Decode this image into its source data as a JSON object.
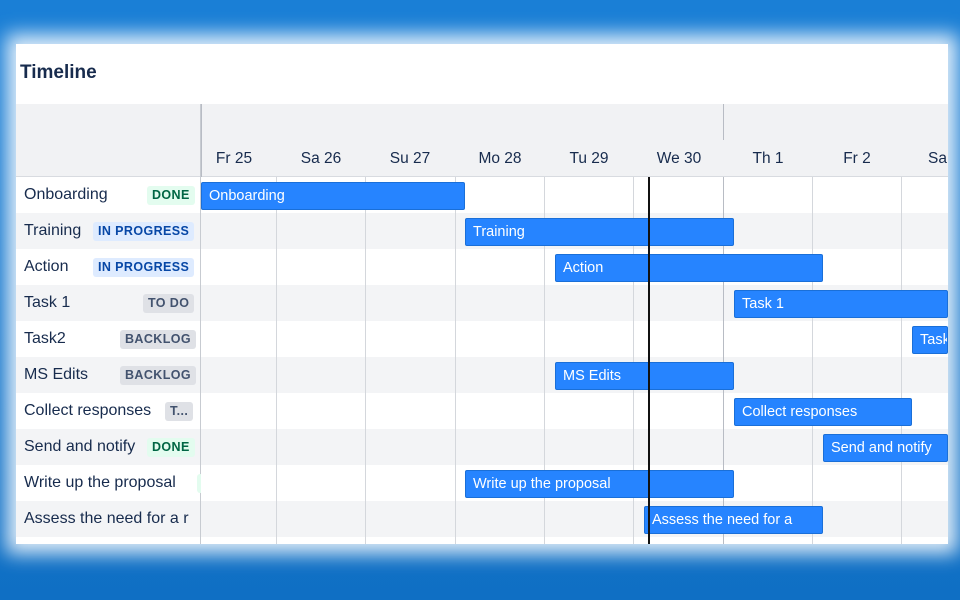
{
  "title": "Timeline",
  "days": [
    "Fr 25",
    "Sa 26",
    "Su 27",
    "Mo 28",
    "Tu 29",
    "We 30",
    "Th 1",
    "Fr 2",
    "Sa"
  ],
  "rows": [
    {
      "name": "Onboarding",
      "status": "DONE",
      "bar_label": "Onboarding"
    },
    {
      "name": "Training",
      "status": "IN PROGRESS",
      "bar_label": "Training"
    },
    {
      "name": "Action",
      "status": "IN PROGRESS",
      "bar_label": "Action"
    },
    {
      "name": "Task 1",
      "status": "TO DO",
      "bar_label": "Task 1"
    },
    {
      "name": "Task2",
      "status": "BACKLOG",
      "bar_label": "Task"
    },
    {
      "name": "MS Edits",
      "status": "BACKLOG",
      "bar_label": "MS Edits"
    },
    {
      "name": "Collect responses",
      "status": "T...",
      "bar_label": "Collect responses"
    },
    {
      "name": "Send and notify",
      "status": "DONE",
      "bar_label": "Send and notify"
    },
    {
      "name": "Write up the proposal",
      "status": "",
      "bar_label": "Write up the proposal"
    },
    {
      "name": "Assess the need for a r",
      "status": "",
      "bar_label": "Assess the need for a"
    }
  ],
  "colors": {
    "bar": "#2684ff",
    "done": "#006644",
    "in_progress": "#0747a6",
    "neutral": "#42526e"
  }
}
